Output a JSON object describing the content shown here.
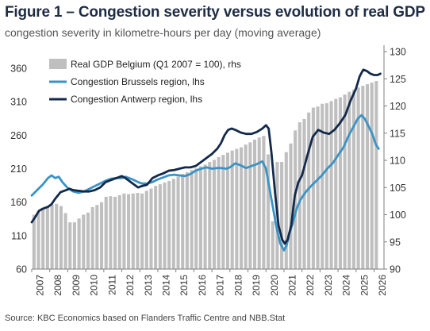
{
  "title": "Figure 1 – Congestion severity versus evolution of real GDP",
  "subtitle": "congestion severity in kilometre-hours per day (moving average)",
  "source": "Source: KBC Economics based on Flanders Traffic Centre and NBB.Stat",
  "chart_data": {
    "type": "bar+line",
    "x_ticks": [
      "2007",
      "2008",
      "2009",
      "2010",
      "2011",
      "2012",
      "2013",
      "2014",
      "2015",
      "2016",
      "2017",
      "2018",
      "2019",
      "2020",
      "2021",
      "2022",
      "2023",
      "2024",
      "2025",
      "2026"
    ],
    "ylim_left": [
      60,
      385
    ],
    "yticks_left": [
      60,
      110,
      160,
      210,
      260,
      310,
      360
    ],
    "ylim_right": [
      90,
      130
    ],
    "yticks_right": [
      90,
      95,
      100,
      105,
      110,
      115,
      120,
      125,
      130
    ],
    "legend_placement": "top-left",
    "series": [
      {
        "name": "Real GDP Belgium (Q1 2007 = 100), rhs",
        "kind": "bar",
        "axis": "right",
        "color": "#bfbfbf",
        "points": [
          [
            2007.0,
            100.0
          ],
          [
            2007.25,
            100.6
          ],
          [
            2007.5,
            101.1
          ],
          [
            2007.75,
            101.5
          ],
          [
            2008.0,
            101.9
          ],
          [
            2008.25,
            102.0
          ],
          [
            2008.5,
            101.6
          ],
          [
            2008.75,
            100.3
          ],
          [
            2009.0,
            98.6
          ],
          [
            2009.25,
            98.6
          ],
          [
            2009.5,
            99.3
          ],
          [
            2009.75,
            100.0
          ],
          [
            2010.0,
            100.4
          ],
          [
            2010.25,
            101.4
          ],
          [
            2010.5,
            101.8
          ],
          [
            2010.75,
            102.3
          ],
          [
            2011.0,
            103.3
          ],
          [
            2011.25,
            103.4
          ],
          [
            2011.5,
            103.3
          ],
          [
            2011.75,
            103.6
          ],
          [
            2012.0,
            103.9
          ],
          [
            2012.25,
            103.8
          ],
          [
            2012.5,
            103.9
          ],
          [
            2012.75,
            104.0
          ],
          [
            2013.0,
            103.9
          ],
          [
            2013.25,
            104.4
          ],
          [
            2013.5,
            104.8
          ],
          [
            2013.75,
            105.3
          ],
          [
            2014.0,
            105.6
          ],
          [
            2014.25,
            105.9
          ],
          [
            2014.5,
            106.2
          ],
          [
            2014.75,
            106.6
          ],
          [
            2015.0,
            107.0
          ],
          [
            2015.25,
            107.5
          ],
          [
            2015.5,
            107.8
          ],
          [
            2015.75,
            108.2
          ],
          [
            2016.0,
            108.5
          ],
          [
            2016.25,
            108.9
          ],
          [
            2016.5,
            109.2
          ],
          [
            2016.75,
            109.7
          ],
          [
            2017.0,
            110.1
          ],
          [
            2017.25,
            110.6
          ],
          [
            2017.5,
            111.0
          ],
          [
            2017.75,
            111.4
          ],
          [
            2018.0,
            111.8
          ],
          [
            2018.25,
            112.1
          ],
          [
            2018.5,
            112.4
          ],
          [
            2018.75,
            112.9
          ],
          [
            2019.0,
            113.3
          ],
          [
            2019.25,
            113.8
          ],
          [
            2019.5,
            114.2
          ],
          [
            2019.75,
            114.5
          ],
          [
            2020.0,
            111.1
          ],
          [
            2020.25,
            98.8
          ],
          [
            2020.5,
            109.7
          ],
          [
            2020.75,
            109.7
          ],
          [
            2021.0,
            111.5
          ],
          [
            2021.25,
            113.1
          ],
          [
            2021.5,
            115.5
          ],
          [
            2021.75,
            117.0
          ],
          [
            2022.0,
            117.6
          ],
          [
            2022.25,
            118.8
          ],
          [
            2022.5,
            119.7
          ],
          [
            2022.75,
            119.9
          ],
          [
            2023.0,
            120.4
          ],
          [
            2023.25,
            120.5
          ],
          [
            2023.5,
            120.9
          ],
          [
            2023.75,
            121.3
          ],
          [
            2024.0,
            121.6
          ],
          [
            2024.25,
            122.1
          ],
          [
            2024.5,
            122.6
          ],
          [
            2024.75,
            123.0
          ],
          [
            2025.0,
            123.4
          ],
          [
            2025.25,
            123.7
          ],
          [
            2025.5,
            124.0
          ],
          [
            2025.75,
            124.3
          ],
          [
            2026.0,
            124.6
          ]
        ]
      },
      {
        "name": "Congestion Brussels region, lhs",
        "kind": "line",
        "axis": "left",
        "color": "#3b93c4",
        "points": [
          [
            2007.0,
            170
          ],
          [
            2007.3,
            178
          ],
          [
            2007.6,
            186
          ],
          [
            2007.9,
            196
          ],
          [
            2008.1,
            200
          ],
          [
            2008.3,
            196
          ],
          [
            2008.5,
            198
          ],
          [
            2008.7,
            190
          ],
          [
            2009.0,
            181
          ],
          [
            2009.3,
            176
          ],
          [
            2009.6,
            174
          ],
          [
            2009.9,
            176
          ],
          [
            2010.2,
            180
          ],
          [
            2010.5,
            184
          ],
          [
            2010.8,
            188
          ],
          [
            2011.1,
            192
          ],
          [
            2011.4,
            195
          ],
          [
            2011.7,
            196
          ],
          [
            2012.0,
            196
          ],
          [
            2012.2,
            198
          ],
          [
            2012.4,
            196
          ],
          [
            2012.6,
            194
          ],
          [
            2012.9,
            190
          ],
          [
            2013.1,
            188
          ],
          [
            2013.4,
            188
          ],
          [
            2013.7,
            190
          ],
          [
            2014.0,
            194
          ],
          [
            2014.3,
            197
          ],
          [
            2014.6,
            200
          ],
          [
            2014.9,
            201
          ],
          [
            2015.2,
            200
          ],
          [
            2015.5,
            199
          ],
          [
            2015.8,
            202
          ],
          [
            2016.1,
            207
          ],
          [
            2016.4,
            210
          ],
          [
            2016.7,
            212
          ],
          [
            2017.0,
            210
          ],
          [
            2017.3,
            211
          ],
          [
            2017.5,
            211
          ],
          [
            2017.8,
            210
          ],
          [
            2018.0,
            212
          ],
          [
            2018.3,
            218
          ],
          [
            2018.6,
            215
          ],
          [
            2018.9,
            211
          ],
          [
            2019.2,
            214
          ],
          [
            2019.5,
            217
          ],
          [
            2019.8,
            221
          ],
          [
            2020.0,
            210
          ],
          [
            2020.2,
            180
          ],
          [
            2020.4,
            150
          ],
          [
            2020.6,
            120
          ],
          [
            2020.8,
            98
          ],
          [
            2021.0,
            88
          ],
          [
            2021.15,
            96
          ],
          [
            2021.3,
            113
          ],
          [
            2021.5,
            130
          ],
          [
            2021.7,
            150
          ],
          [
            2021.9,
            163
          ],
          [
            2022.2,
            175
          ],
          [
            2022.5,
            184
          ],
          [
            2022.8,
            192
          ],
          [
            2023.1,
            200
          ],
          [
            2023.4,
            210
          ],
          [
            2023.7,
            218
          ],
          [
            2024.0,
            230
          ],
          [
            2024.3,
            242
          ],
          [
            2024.6,
            260
          ],
          [
            2024.9,
            275
          ],
          [
            2025.1,
            285
          ],
          [
            2025.3,
            290
          ],
          [
            2025.5,
            284
          ],
          [
            2025.7,
            273
          ],
          [
            2025.9,
            262
          ],
          [
            2026.1,
            246
          ],
          [
            2026.25,
            240
          ]
        ]
      },
      {
        "name": "Congestion Antwerp region, lhs",
        "kind": "line",
        "axis": "left",
        "color": "#13294b",
        "points": [
          [
            2007.0,
            130
          ],
          [
            2007.2,
            138
          ],
          [
            2007.4,
            147
          ],
          [
            2007.6,
            150
          ],
          [
            2007.9,
            153
          ],
          [
            2008.1,
            157
          ],
          [
            2008.3,
            165
          ],
          [
            2008.6,
            175
          ],
          [
            2008.9,
            178
          ],
          [
            2009.1,
            180
          ],
          [
            2009.3,
            178
          ],
          [
            2009.6,
            177
          ],
          [
            2009.9,
            176
          ],
          [
            2010.2,
            176
          ],
          [
            2010.5,
            178
          ],
          [
            2010.8,
            182
          ],
          [
            2011.1,
            190
          ],
          [
            2011.4,
            193
          ],
          [
            2011.7,
            196
          ],
          [
            2012.0,
            199
          ],
          [
            2012.2,
            196
          ],
          [
            2012.4,
            192
          ],
          [
            2012.6,
            188
          ],
          [
            2012.9,
            182
          ],
          [
            2013.1,
            184
          ],
          [
            2013.4,
            186
          ],
          [
            2013.7,
            196
          ],
          [
            2014.0,
            200
          ],
          [
            2014.3,
            203
          ],
          [
            2014.6,
            207
          ],
          [
            2014.9,
            208
          ],
          [
            2015.2,
            210
          ],
          [
            2015.5,
            212
          ],
          [
            2015.8,
            212
          ],
          [
            2016.1,
            214
          ],
          [
            2016.4,
            220
          ],
          [
            2016.7,
            226
          ],
          [
            2017.0,
            232
          ],
          [
            2017.3,
            240
          ],
          [
            2017.5,
            248
          ],
          [
            2017.7,
            260
          ],
          [
            2017.9,
            268
          ],
          [
            2018.1,
            270
          ],
          [
            2018.3,
            268
          ],
          [
            2018.6,
            264
          ],
          [
            2018.9,
            262
          ],
          [
            2019.2,
            262
          ],
          [
            2019.5,
            265
          ],
          [
            2019.8,
            270
          ],
          [
            2020.0,
            275
          ],
          [
            2020.15,
            270
          ],
          [
            2020.3,
            235
          ],
          [
            2020.5,
            175
          ],
          [
            2020.7,
            125
          ],
          [
            2020.9,
            104
          ],
          [
            2021.05,
            98
          ],
          [
            2021.2,
            104
          ],
          [
            2021.4,
            125
          ],
          [
            2021.6,
            170
          ],
          [
            2021.8,
            190
          ],
          [
            2022.0,
            200
          ],
          [
            2022.3,
            230
          ],
          [
            2022.6,
            258
          ],
          [
            2022.9,
            268
          ],
          [
            2023.2,
            264
          ],
          [
            2023.5,
            262
          ],
          [
            2023.8,
            268
          ],
          [
            2024.1,
            278
          ],
          [
            2024.4,
            290
          ],
          [
            2024.7,
            312
          ],
          [
            2025.0,
            330
          ],
          [
            2025.2,
            348
          ],
          [
            2025.4,
            358
          ],
          [
            2025.6,
            356
          ],
          [
            2025.8,
            352
          ],
          [
            2026.0,
            350
          ],
          [
            2026.2,
            350
          ],
          [
            2026.35,
            352
          ]
        ]
      }
    ]
  }
}
